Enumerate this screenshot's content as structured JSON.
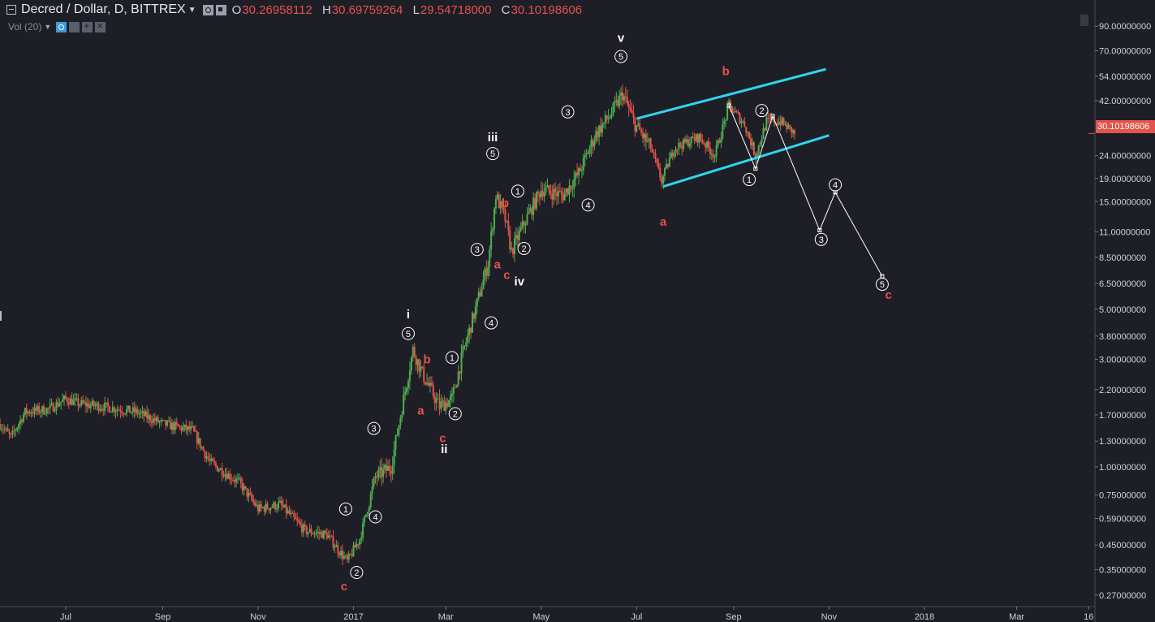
{
  "header": {
    "symbol": "Decred / Dollar, D, BITTREX",
    "open_label": "O",
    "open": "30.26958112",
    "high_label": "H",
    "high": "30.69759264",
    "low_label": "L",
    "low": "29.54718000",
    "close_label": "C",
    "close": "30.10198606"
  },
  "volume_indicator": {
    "label": "Vol (20)"
  },
  "colors": {
    "background": "#1e1e27",
    "up_candle": "#4caf50",
    "down_candle": "#e5534b",
    "channel": "#2fd5f0",
    "projection": "#ffffff",
    "axis_text": "#d0d0d8",
    "label_red": "#e5534b"
  },
  "chart_data": {
    "type": "candlestick",
    "title": "Decred / Dollar, D, BITTREX",
    "scale": "log",
    "ylim": [
      0.24,
      110
    ],
    "xlim": [
      "2016-05-20",
      "2018-04-20"
    ],
    "last_price": "30.10198606",
    "x_ticks": [
      {
        "date": "2016-07-01",
        "label": "Jul"
      },
      {
        "date": "2016-09-01",
        "label": "Sep"
      },
      {
        "date": "2016-11-01",
        "label": "Nov"
      },
      {
        "date": "2017-01-01",
        "label": "2017"
      },
      {
        "date": "2017-03-01",
        "label": "Mar"
      },
      {
        "date": "2017-05-01",
        "label": "May"
      },
      {
        "date": "2017-07-01",
        "label": "Jul"
      },
      {
        "date": "2017-09-01",
        "label": "Sep"
      },
      {
        "date": "2017-11-01",
        "label": "Nov"
      },
      {
        "date": "2018-01-01",
        "label": "2018"
      },
      {
        "date": "2018-03-01",
        "label": "Mar"
      },
      {
        "date": "2018-04-16",
        "label": "16"
      }
    ],
    "y_ticks": [
      {
        "value": 90,
        "label": "90.00000000"
      },
      {
        "value": 70,
        "label": "70.00000000"
      },
      {
        "value": 54,
        "label": "54.00000000"
      },
      {
        "value": 42,
        "label": "42.00000000"
      },
      {
        "value": 24,
        "label": "24.00000000"
      },
      {
        "value": 19,
        "label": "19.00000000"
      },
      {
        "value": 15,
        "label": "15.00000000"
      },
      {
        "value": 11,
        "label": "11.00000000"
      },
      {
        "value": 8.5,
        "label": "8.50000000"
      },
      {
        "value": 6.5,
        "label": "6.50000000"
      },
      {
        "value": 5.0,
        "label": "5.00000000"
      },
      {
        "value": 3.8,
        "label": "3.80000000"
      },
      {
        "value": 3.0,
        "label": "3.00000000"
      },
      {
        "value": 2.2,
        "label": "2.20000000"
      },
      {
        "value": 1.7,
        "label": "1.70000000"
      },
      {
        "value": 1.3,
        "label": "1.30000000"
      },
      {
        "value": 1.0,
        "label": "1.00000000"
      },
      {
        "value": 0.75,
        "label": "0.75000000"
      },
      {
        "value": 0.59,
        "label": "0.59000000"
      },
      {
        "value": 0.45,
        "label": "0.45000000"
      },
      {
        "value": 0.35,
        "label": "0.35000000"
      },
      {
        "value": 0.27,
        "label": "0.27000000"
      }
    ],
    "price_path": [
      {
        "date": "2016-05-20",
        "price": 1.55
      },
      {
        "date": "2016-05-27",
        "price": 1.35
      },
      {
        "date": "2016-06-05",
        "price": 1.75
      },
      {
        "date": "2016-06-20",
        "price": 1.8
      },
      {
        "date": "2016-07-01",
        "price": 2.0
      },
      {
        "date": "2016-07-10",
        "price": 1.9
      },
      {
        "date": "2016-07-25",
        "price": 1.85
      },
      {
        "date": "2016-08-15",
        "price": 1.75
      },
      {
        "date": "2016-09-01",
        "price": 1.55
      },
      {
        "date": "2016-09-20",
        "price": 1.45
      },
      {
        "date": "2016-10-01",
        "price": 1.05
      },
      {
        "date": "2016-10-20",
        "price": 0.85
      },
      {
        "date": "2016-11-01",
        "price": 0.65
      },
      {
        "date": "2016-11-15",
        "price": 0.68
      },
      {
        "date": "2016-12-01",
        "price": 0.52
      },
      {
        "date": "2016-12-15",
        "price": 0.5
      },
      {
        "date": "2016-12-28",
        "price": 0.38
      },
      {
        "date": "2017-01-05",
        "price": 0.48
      },
      {
        "date": "2017-01-15",
        "price": 0.9
      },
      {
        "date": "2017-01-25",
        "price": 1.0
      },
      {
        "date": "2017-02-02",
        "price": 2.0
      },
      {
        "date": "2017-02-08",
        "price": 3.3
      },
      {
        "date": "2017-02-15",
        "price": 2.5
      },
      {
        "date": "2017-02-25",
        "price": 1.85
      },
      {
        "date": "2017-03-05",
        "price": 2.0
      },
      {
        "date": "2017-03-12",
        "price": 3.2
      },
      {
        "date": "2017-03-20",
        "price": 5.0
      },
      {
        "date": "2017-03-28",
        "price": 8.0
      },
      {
        "date": "2017-04-02",
        "price": 16.0
      },
      {
        "date": "2017-04-08",
        "price": 12.5
      },
      {
        "date": "2017-04-12",
        "price": 9.0
      },
      {
        "date": "2017-04-20",
        "price": 12.0
      },
      {
        "date": "2017-05-01",
        "price": 17.0
      },
      {
        "date": "2017-05-15",
        "price": 16.0
      },
      {
        "date": "2017-05-25",
        "price": 20.0
      },
      {
        "date": "2017-06-05",
        "price": 30.0
      },
      {
        "date": "2017-06-15",
        "price": 37.0
      },
      {
        "date": "2017-06-22",
        "price": 45.0
      },
      {
        "date": "2017-06-30",
        "price": 33.0
      },
      {
        "date": "2017-07-10",
        "price": 26.0
      },
      {
        "date": "2017-07-17",
        "price": 18.5
      },
      {
        "date": "2017-07-25",
        "price": 26.0
      },
      {
        "date": "2017-08-10",
        "price": 29.0
      },
      {
        "date": "2017-08-20",
        "price": 24.0
      },
      {
        "date": "2017-08-29",
        "price": 40.0
      },
      {
        "date": "2017-09-08",
        "price": 33.0
      },
      {
        "date": "2017-09-15",
        "price": 24.0
      },
      {
        "date": "2017-09-22",
        "price": 34.0
      },
      {
        "date": "2017-10-01",
        "price": 34.0
      },
      {
        "date": "2017-10-10",
        "price": 30.1
      }
    ],
    "channel_lines": [
      {
        "from": {
          "date": "2017-07-01",
          "price": 35
        },
        "to": {
          "date": "2017-10-30",
          "price": 58
        }
      },
      {
        "from": {
          "date": "2017-07-18",
          "price": 17.5
        },
        "to": {
          "date": "2017-11-01",
          "price": 29.5
        }
      }
    ],
    "projection": [
      {
        "date": "2017-08-29",
        "price": 40
      },
      {
        "date": "2017-09-15",
        "price": 21
      },
      {
        "date": "2017-09-26",
        "price": 36
      },
      {
        "date": "2017-10-26",
        "price": 11.2
      },
      {
        "date": "2017-11-05",
        "price": 16.5
      },
      {
        "date": "2017-12-05",
        "price": 7.0
      }
    ],
    "annotations": [
      {
        "text": "v",
        "kind": "roman",
        "date": "2017-06-21",
        "price": 80
      },
      {
        "text": "iii",
        "kind": "roman",
        "date": "2017-03-31",
        "price": 29
      },
      {
        "text": "iv",
        "kind": "roman",
        "date": "2017-04-17",
        "price": 6.65
      },
      {
        "text": "i",
        "kind": "roman",
        "date": "2017-02-05",
        "price": 4.75
      },
      {
        "text": "ii",
        "kind": "roman",
        "date": "2017-02-28",
        "price": 1.2
      },
      {
        "text": "5",
        "kind": "circle",
        "date": "2017-06-21",
        "price": 66
      },
      {
        "text": "3",
        "kind": "circle",
        "date": "2017-05-18",
        "price": 37.5
      },
      {
        "text": "4",
        "kind": "circle",
        "date": "2017-05-31",
        "price": 14.5
      },
      {
        "text": "5",
        "kind": "circle",
        "date": "2017-03-31",
        "price": 24.5
      },
      {
        "text": "1",
        "kind": "circle",
        "date": "2017-04-16",
        "price": 16.7
      },
      {
        "text": "2",
        "kind": "circle",
        "date": "2017-04-20",
        "price": 9.3
      },
      {
        "text": "3",
        "kind": "circle",
        "date": "2017-03-21",
        "price": 9.2
      },
      {
        "text": "4",
        "kind": "circle",
        "date": "2017-03-30",
        "price": 4.35
      },
      {
        "text": "5",
        "kind": "circle",
        "date": "2017-02-05",
        "price": 3.9
      },
      {
        "text": "1",
        "kind": "circle",
        "date": "2017-03-05",
        "price": 3.05
      },
      {
        "text": "2",
        "kind": "circle",
        "date": "2017-03-07",
        "price": 1.72
      },
      {
        "text": "3",
        "kind": "circle",
        "date": "2017-01-14",
        "price": 1.48
      },
      {
        "text": "1",
        "kind": "circle",
        "date": "2016-12-27",
        "price": 0.65
      },
      {
        "text": "4",
        "kind": "circle",
        "date": "2017-01-15",
        "price": 0.6
      },
      {
        "text": "2",
        "kind": "circle",
        "date": "2017-01-03",
        "price": 0.34
      },
      {
        "text": "1",
        "kind": "circle",
        "date": "2017-09-11",
        "price": 18.8
      },
      {
        "text": "2",
        "kind": "circle",
        "date": "2017-09-19",
        "price": 38
      },
      {
        "text": "3",
        "kind": "circle",
        "date": "2017-10-27",
        "price": 10.2
      },
      {
        "text": "4",
        "kind": "circle",
        "date": "2017-11-05",
        "price": 17.8
      },
      {
        "text": "5",
        "kind": "circle",
        "date": "2017-12-05",
        "price": 6.45
      },
      {
        "text": "b",
        "kind": "red",
        "date": "2017-08-27",
        "price": 57
      },
      {
        "text": "a",
        "kind": "red",
        "date": "2017-07-18",
        "price": 12.2
      },
      {
        "text": "c",
        "kind": "red",
        "date": "2017-12-09",
        "price": 5.8
      },
      {
        "text": "b",
        "kind": "red",
        "date": "2017-04-08",
        "price": 14.8
      },
      {
        "text": "a",
        "kind": "red",
        "date": "2017-04-03",
        "price": 7.9
      },
      {
        "text": "c",
        "kind": "red",
        "date": "2017-04-09",
        "price": 7.1
      },
      {
        "text": "b",
        "kind": "red",
        "date": "2017-02-17",
        "price": 3.0
      },
      {
        "text": "a",
        "kind": "red",
        "date": "2017-02-13",
        "price": 1.78
      },
      {
        "text": "c",
        "kind": "red",
        "date": "2017-02-27",
        "price": 1.34
      },
      {
        "text": "c",
        "kind": "red",
        "date": "2016-12-26",
        "price": 0.295
      }
    ]
  }
}
